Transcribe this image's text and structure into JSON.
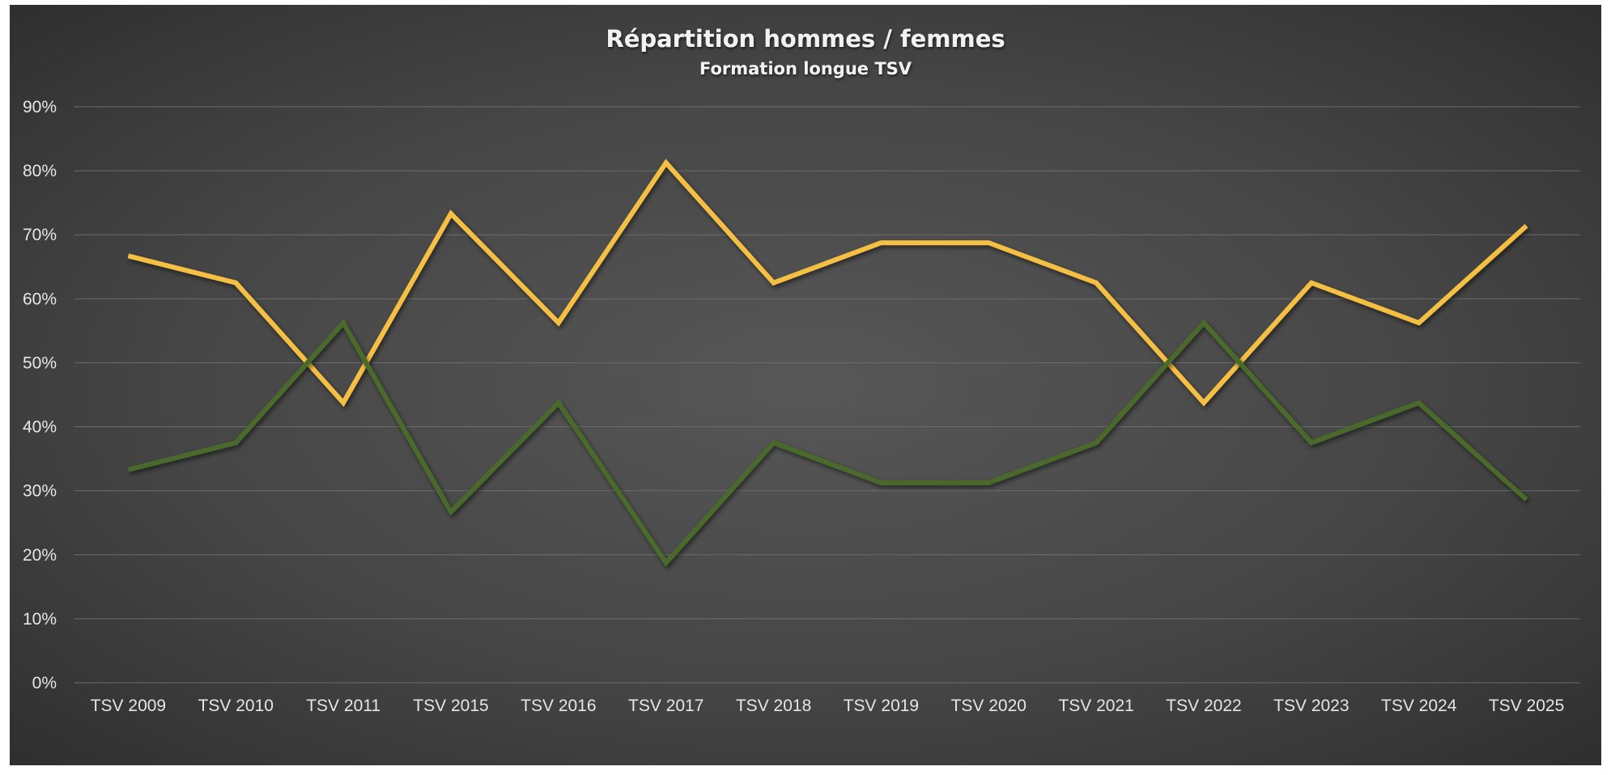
{
  "chart_data": {
    "type": "line",
    "title": "Répartition hommes / femmes",
    "subtitle": "Formation longue TSV",
    "categories": [
      "TSV 2009",
      "TSV 2010",
      "TSV 2011",
      "TSV 2015",
      "TSV 2016",
      "TSV 2017",
      "TSV 2018",
      "TSV 2019",
      "TSV 2020",
      "TSV 2021",
      "TSV 2022",
      "TSV 2023",
      "TSV 2024",
      "TSV 2025"
    ],
    "y_ticks": [
      "0%",
      "10%",
      "20%",
      "30%",
      "40%",
      "50%",
      "60%",
      "70%",
      "80%",
      "90%"
    ],
    "ylim": [
      0,
      90
    ],
    "grid": true,
    "series": [
      {
        "color": "#f4bf42",
        "values": [
          66.7,
          62.5,
          43.75,
          73.3,
          56.25,
          81.25,
          62.5,
          68.75,
          68.75,
          62.5,
          43.75,
          62.5,
          56.25,
          71.4
        ]
      },
      {
        "color": "#4a6b2a",
        "values": [
          33.3,
          37.5,
          56.25,
          26.7,
          43.75,
          18.75,
          37.5,
          31.25,
          31.25,
          37.5,
          56.25,
          37.5,
          43.75,
          28.6
        ]
      }
    ]
  }
}
